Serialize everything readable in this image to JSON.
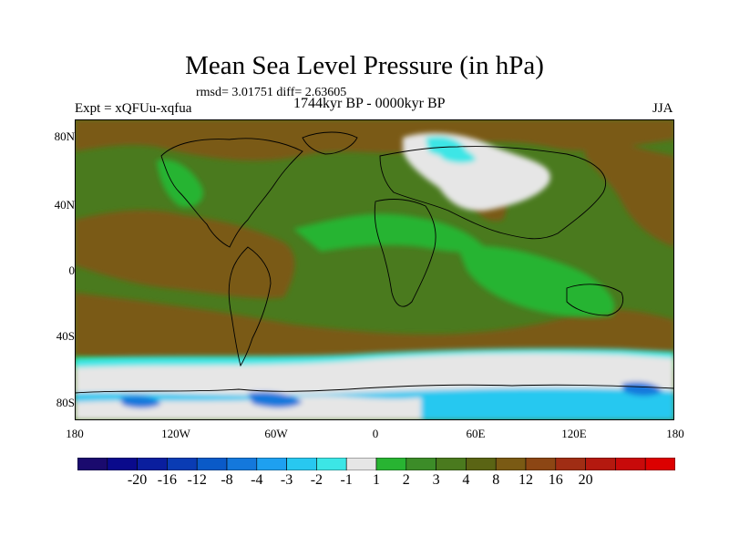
{
  "title": "Mean Sea Level Pressure (in hPa)",
  "stats": "rmsd= 3.01751 diff= 2.63605",
  "experiment": "Expt = xQFUu-xqfua",
  "period": "1744kyr BP - 0000kyr BP",
  "season": "JJA",
  "lat_ticks": [
    "80N",
    "40N",
    "0",
    "40S",
    "80S"
  ],
  "lon_ticks": [
    "180",
    "120W",
    "60W",
    "0",
    "60E",
    "120E",
    "180"
  ],
  "colorbar": {
    "colors": [
      "#1a0a6e",
      "#0a0a8c",
      "#0a1e9e",
      "#0a3cb4",
      "#0a5ac8",
      "#1478dc",
      "#1ea0f0",
      "#28c8f0",
      "#3ce6e6",
      "#e6e6e6",
      "#28b432",
      "#3c8c28",
      "#4a7a1e",
      "#5a6414",
      "#7a5a14",
      "#8c4614",
      "#a02d14",
      "#b4190f",
      "#c80a0a",
      "#dc0000"
    ],
    "labels": [
      "-20",
      "-16",
      "-12",
      "-8",
      "-4",
      "-3",
      "-2",
      "-1",
      "1",
      "2",
      "3",
      "4",
      "8",
      "12",
      "16",
      "20"
    ]
  },
  "palette": {
    "land_outline": "#000000",
    "field_base": "#4a7a1e",
    "brown": "#7a5a14",
    "green_light": "#28b432",
    "white": "#e6e6e6",
    "cyan": "#3ce6e6",
    "lightblue": "#28c8f0",
    "blue": "#1478dc"
  }
}
